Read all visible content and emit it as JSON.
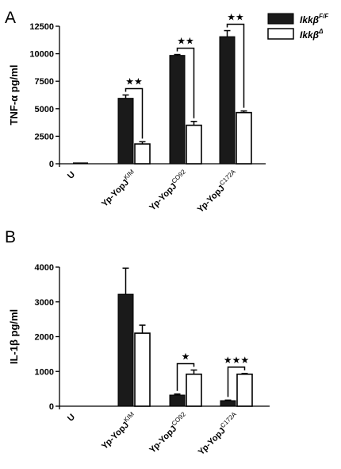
{
  "chart_data": [
    {
      "type": "bar",
      "panel": "A",
      "ylabel": "TNF-α pg/ml",
      "ylim": [
        0,
        12500
      ],
      "yticks": [
        0,
        2500,
        5000,
        7500,
        10000,
        12500
      ],
      "yticks_label": [
        "0",
        "2500",
        "5000",
        "7500",
        "10000",
        "12500"
      ],
      "categories": [
        {
          "base": "U",
          "sup": ""
        },
        {
          "base": "Yp-YopJ",
          "sup": "KIM"
        },
        {
          "base": "Yp-YopJ",
          "sup": "CO92"
        },
        {
          "base": "Yp-YopJ",
          "sup": "C172A"
        }
      ],
      "series": [
        {
          "name": "Ikkβ",
          "name_sup": "F/F",
          "color": "#1a1a1a",
          "fill": "solid",
          "values": [
            0,
            5950,
            9850,
            11550
          ],
          "errors": [
            0,
            300,
            80,
            550
          ]
        },
        {
          "name": "Ikkβ",
          "name_sup": "Δ",
          "color": "#ffffff",
          "fill": "open",
          "values": [
            30,
            1800,
            3500,
            4650
          ],
          "errors": [
            20,
            200,
            350,
            150
          ]
        }
      ],
      "significance": [
        {
          "category_index": 1,
          "label": "★★"
        },
        {
          "category_index": 2,
          "label": "★★"
        },
        {
          "category_index": 3,
          "label": "★★"
        }
      ],
      "legend_position": "top-right"
    },
    {
      "type": "bar",
      "panel": "B",
      "ylabel": "IL-1β pg/ml",
      "ylim": [
        0,
        4000
      ],
      "yticks": [
        0,
        1000,
        2000,
        3000,
        4000
      ],
      "yticks_label": [
        "0",
        "1000",
        "2000",
        "3000",
        "4000"
      ],
      "categories": [
        {
          "base": "U",
          "sup": ""
        },
        {
          "base": "Yp-YopJ",
          "sup": "KIM"
        },
        {
          "base": "Yp-YopJ",
          "sup": "CO92"
        },
        {
          "base": "Yp-YopJ",
          "sup": "C172A"
        }
      ],
      "series": [
        {
          "name": "Ikkβ",
          "name_sup": "F/F",
          "color": "#1a1a1a",
          "fill": "solid",
          "values": [
            0,
            3220,
            320,
            160
          ],
          "errors": [
            0,
            750,
            30,
            15
          ]
        },
        {
          "name": "Ikkβ",
          "name_sup": "Δ",
          "color": "#ffffff",
          "fill": "open",
          "values": [
            0,
            2100,
            920,
            920
          ],
          "errors": [
            0,
            230,
            120,
            20
          ]
        }
      ],
      "significance": [
        {
          "category_index": 2,
          "label": "★"
        },
        {
          "category_index": 3,
          "label": "★★★"
        }
      ]
    }
  ]
}
